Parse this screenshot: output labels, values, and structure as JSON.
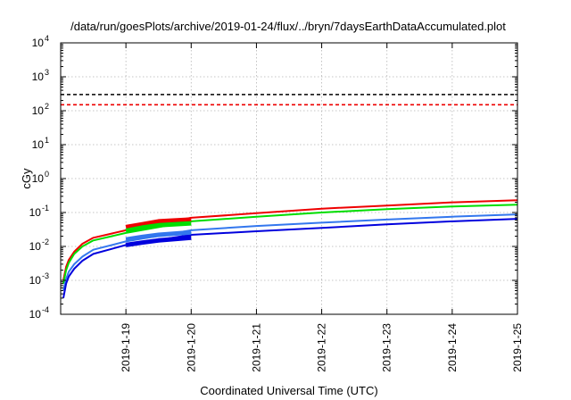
{
  "chart_data": {
    "type": "line",
    "title": "/data/run/goesPlots/archive/2019-01-24/flux/../bryn/7daysEarthDataAccumulated.plot",
    "xlabel": "Coordinated Universal Time (UTC)",
    "ylabel": "cGy",
    "yscale": "log",
    "xlim": [
      "2019-01-18",
      "2019-01-25"
    ],
    "ylim": [
      0.0001,
      10000
    ],
    "x_ticks": [
      "2019-1-19",
      "2019-1-20",
      "2019-1-21",
      "2019-1-22",
      "2019-1-23",
      "2019-1-24",
      "2019-1-25"
    ],
    "y_ticks": [
      {
        "value": 0.0001,
        "base": "10",
        "exp": "-4"
      },
      {
        "value": 0.001,
        "base": "10",
        "exp": "-3"
      },
      {
        "value": 0.01,
        "base": "10",
        "exp": "-2"
      },
      {
        "value": 0.1,
        "base": "10",
        "exp": "-1"
      },
      {
        "value": 1,
        "base": "10",
        "exp": "0"
      },
      {
        "value": 10,
        "base": "10",
        "exp": "1"
      },
      {
        "value": 100,
        "base": "10",
        "exp": "2"
      },
      {
        "value": 1000,
        "base": "10",
        "exp": "3"
      },
      {
        "value": 10000,
        "base": "10",
        "exp": "4"
      }
    ],
    "grid": true,
    "thresholds": [
      {
        "y": 300,
        "color": "#000000",
        "style": "dashed"
      },
      {
        "y": 150,
        "color": "#ee0000",
        "style": "dashed"
      }
    ],
    "series": [
      {
        "color": "#ee0000",
        "width": 2,
        "x": [
          "2019-01-18T01:00",
          "2019-01-18T02:00",
          "2019-01-18T03:00",
          "2019-01-18T05:00",
          "2019-01-18T08:00",
          "2019-01-18T12:00",
          "2019-01-19T00:00",
          "2019-01-20T00:00",
          "2019-01-21T00:00",
          "2019-01-22T00:00",
          "2019-01-23T00:00",
          "2019-01-24T00:00",
          "2019-01-25T00:00"
        ],
        "y": [
          0.001,
          0.0025,
          0.004,
          0.007,
          0.012,
          0.018,
          0.03,
          0.07,
          0.095,
          0.13,
          0.16,
          0.2,
          0.23
        ]
      },
      {
        "color": "#00dd00",
        "width": 2,
        "x": [
          "2019-01-18T01:00",
          "2019-01-18T02:00",
          "2019-01-18T03:00",
          "2019-01-18T05:00",
          "2019-01-18T08:00",
          "2019-01-18T12:00",
          "2019-01-19T00:00",
          "2019-01-20T00:00",
          "2019-01-21T00:00",
          "2019-01-22T00:00",
          "2019-01-23T00:00",
          "2019-01-24T00:00",
          "2019-01-25T00:00"
        ],
        "y": [
          0.0008,
          0.002,
          0.0033,
          0.006,
          0.01,
          0.015,
          0.025,
          0.055,
          0.075,
          0.1,
          0.125,
          0.15,
          0.17
        ]
      },
      {
        "color": "#3377ee",
        "width": 2,
        "x": [
          "2019-01-18T01:00",
          "2019-01-18T02:00",
          "2019-01-18T03:00",
          "2019-01-18T05:00",
          "2019-01-18T08:00",
          "2019-01-18T12:00",
          "2019-01-19T00:00",
          "2019-01-20T00:00",
          "2019-01-21T00:00",
          "2019-01-22T00:00",
          "2019-01-23T00:00",
          "2019-01-24T00:00",
          "2019-01-25T00:00"
        ],
        "y": [
          0.0005,
          0.0011,
          0.0018,
          0.003,
          0.005,
          0.008,
          0.014,
          0.03,
          0.04,
          0.05,
          0.062,
          0.075,
          0.088
        ]
      },
      {
        "color": "#0000dd",
        "width": 2,
        "x": [
          "2019-01-18T01:00",
          "2019-01-18T02:00",
          "2019-01-18T03:00",
          "2019-01-18T05:00",
          "2019-01-18T08:00",
          "2019-01-18T12:00",
          "2019-01-19T00:00",
          "2019-01-20T00:00",
          "2019-01-21T00:00",
          "2019-01-22T00:00",
          "2019-01-23T00:00",
          "2019-01-24T00:00",
          "2019-01-25T00:00"
        ],
        "y": [
          0.0003,
          0.0008,
          0.0013,
          0.0022,
          0.0038,
          0.006,
          0.011,
          0.022,
          0.028,
          0.035,
          0.045,
          0.055,
          0.065
        ]
      },
      {
        "color": "#ee0000",
        "width": 5,
        "x": [
          "2019-01-19T00:00",
          "2019-01-19T06:00",
          "2019-01-19T12:00",
          "2019-01-20T00:00"
        ],
        "y": [
          0.037,
          0.045,
          0.055,
          0.062
        ]
      },
      {
        "color": "#00dd00",
        "width": 5,
        "x": [
          "2019-01-19T00:00",
          "2019-01-19T06:00",
          "2019-01-19T12:00",
          "2019-01-20T00:00"
        ],
        "y": [
          0.029,
          0.036,
          0.042,
          0.048
        ]
      },
      {
        "color": "#3377ee",
        "width": 5,
        "x": [
          "2019-01-19T00:00",
          "2019-01-19T06:00",
          "2019-01-19T12:00",
          "2019-01-20T00:00"
        ],
        "y": [
          0.016,
          0.019,
          0.022,
          0.026
        ]
      },
      {
        "color": "#0000dd",
        "width": 5,
        "x": [
          "2019-01-19T00:00",
          "2019-01-19T06:00",
          "2019-01-19T12:00",
          "2019-01-20T00:00"
        ],
        "y": [
          0.011,
          0.013,
          0.015,
          0.018
        ]
      }
    ]
  }
}
